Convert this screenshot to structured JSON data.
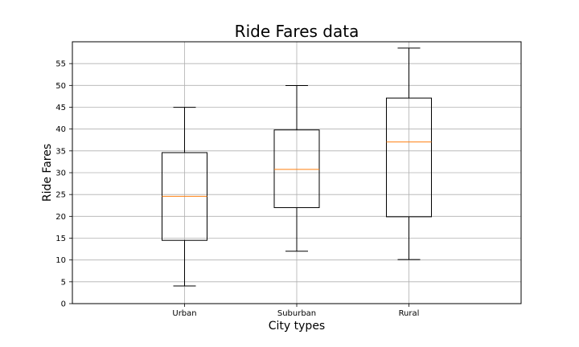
{
  "chart_data": {
    "type": "box",
    "title": "Ride Fares data",
    "xlabel": "City types",
    "ylabel": "Ride Fares",
    "categories": [
      "Urban",
      "Suburban",
      "Rural"
    ],
    "boxes": [
      {
        "category": "Urban",
        "whisker_low": 4.05,
        "q1": 14.5,
        "median": 24.6,
        "q3": 34.6,
        "whisker_high": 44.97
      },
      {
        "category": "Suburban",
        "whisker_low": 12.0,
        "q1": 22.0,
        "median": 30.75,
        "q3": 39.8,
        "whisker_high": 49.96
      },
      {
        "category": "Rural",
        "whisker_low": 10.11,
        "q1": 19.9,
        "median": 37.05,
        "q3": 47.1,
        "whisker_high": 58.55
      }
    ],
    "ylim": [
      0,
      60
    ],
    "yticks": [
      "0",
      "5",
      "10",
      "15",
      "20",
      "25",
      "30",
      "35",
      "40",
      "45",
      "50",
      "55"
    ],
    "grid": true,
    "colors": {
      "box": "#000000",
      "median": "#ff7f0e",
      "grid": "#b0b0b0"
    }
  }
}
